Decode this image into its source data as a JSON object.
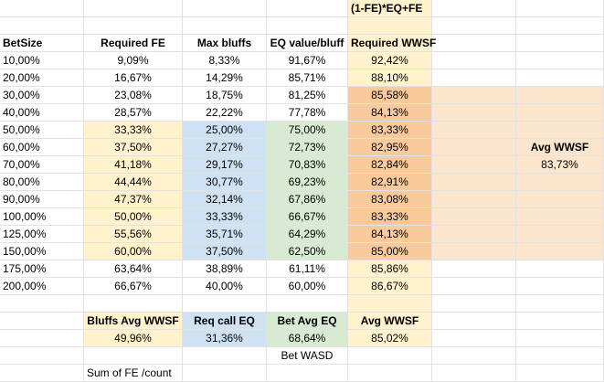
{
  "headers": {
    "formula": "(1-FE)*EQ+FE",
    "bet_size": "BetSize",
    "required_fe": "Required FE",
    "max_bluffs": "Max bluffs",
    "eq_value_bluff": "EQ value/bluff",
    "required_wwsf": "Required WWSF"
  },
  "rows": [
    [
      "10,00%",
      "9,09%",
      "8,33%",
      "91,67%",
      "92,42%"
    ],
    [
      "20,00%",
      "16,67%",
      "14,29%",
      "85,71%",
      "88,10%"
    ],
    [
      "30,00%",
      "23,08%",
      "18,75%",
      "81,25%",
      "85,58%"
    ],
    [
      "40,00%",
      "28,57%",
      "22,22%",
      "77,78%",
      "84,13%"
    ],
    [
      "50,00%",
      "33,33%",
      "25,00%",
      "75,00%",
      "83,33%"
    ],
    [
      "60,00%",
      "37,50%",
      "27,27%",
      "72,73%",
      "82,95%"
    ],
    [
      "70,00%",
      "41,18%",
      "29,17%",
      "70,83%",
      "82,84%"
    ],
    [
      "80,00%",
      "44,44%",
      "30,77%",
      "69,23%",
      "82,91%"
    ],
    [
      "90,00%",
      "47,37%",
      "32,14%",
      "67,86%",
      "83,08%"
    ],
    [
      "100,00%",
      "50,00%",
      "33,33%",
      "66,67%",
      "83,33%"
    ],
    [
      "125,00%",
      "55,56%",
      "35,71%",
      "64,29%",
      "84,13%"
    ],
    [
      "150,00%",
      "60,00%",
      "37,50%",
      "62,50%",
      "85,00%"
    ],
    [
      "175,00%",
      "63,64%",
      "38,89%",
      "61,11%",
      "85,86%"
    ],
    [
      "200,00%",
      "66,67%",
      "40,00%",
      "60,00%",
      "86,67%"
    ]
  ],
  "side_summary": {
    "label": "Avg WWSF",
    "value": "83,73%"
  },
  "summary": {
    "labels": [
      "Bluffs Avg WWSF",
      "Req call EQ",
      "Bet Avg EQ",
      "Avg WWSF"
    ],
    "values": [
      "49,96%",
      "31,36%",
      "68,64%",
      "85,02%"
    ]
  },
  "notes": {
    "bet_wasd": "Bet WASD",
    "sum_fe": "Sum of FE /count"
  },
  "colors": {
    "yellow": "#fff2cc",
    "blue": "#cfe2f3",
    "green": "#d9ead3",
    "orange": "#f9cb9c",
    "peach": "#fce5cd",
    "gridline": "#e2e2e2"
  }
}
